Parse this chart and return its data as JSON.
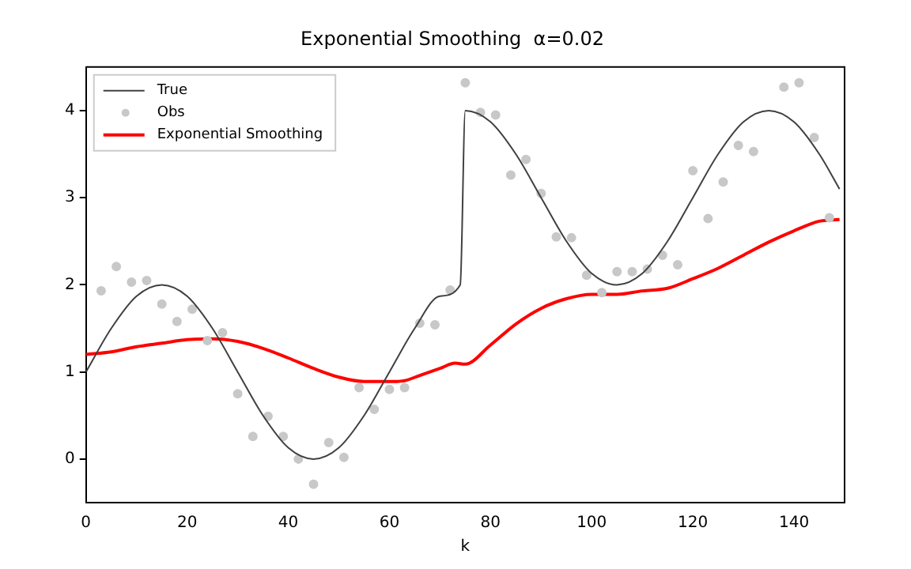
{
  "chart_data": {
    "type": "line",
    "title": "Exponential Smoothing  α=0.02",
    "xlabel": "k",
    "xlim": [
      0,
      150
    ],
    "xticks": [
      0,
      20,
      40,
      60,
      80,
      100,
      120,
      140
    ],
    "ylim": [
      -0.5,
      4.5
    ],
    "yticks": [
      0,
      1,
      2,
      3,
      4
    ],
    "grid": false,
    "legend": "top left",
    "series": [
      {
        "name": "True",
        "type": "line",
        "color": "#404040",
        "marker": "none",
        "x": [
          0,
          5,
          10,
          15,
          20,
          25,
          30,
          35,
          40,
          45,
          50,
          55,
          60,
          65,
          70,
          74,
          75,
          80,
          85,
          90,
          95,
          100,
          105,
          110,
          115,
          120,
          125,
          130,
          135,
          140,
          145,
          149
        ],
        "values": [
          1,
          1.5,
          1.87,
          2,
          1.87,
          1.5,
          1,
          0.5,
          0.13,
          0,
          0.13,
          0.5,
          1,
          1.5,
          1.87,
          2,
          4,
          3.87,
          3.5,
          3,
          2.5,
          2.13,
          2,
          2.13,
          2.5,
          3,
          3.5,
          3.87,
          4,
          3.87,
          3.5,
          3.1
        ]
      },
      {
        "name": "Obs",
        "type": "scatter",
        "color": "#c8c8c8",
        "marker": "circle",
        "x": [
          3,
          6,
          9,
          12,
          15,
          18,
          21,
          24,
          27,
          30,
          33,
          36,
          39,
          42,
          45,
          48,
          51,
          54,
          57,
          60,
          63,
          66,
          69,
          72,
          75,
          78,
          81,
          84,
          87,
          90,
          93,
          96,
          99,
          102,
          105,
          108,
          111,
          114,
          117,
          120,
          123,
          126,
          129,
          132,
          138,
          141,
          144,
          147
        ],
        "values": [
          1.93,
          2.21,
          2.03,
          2.05,
          1.78,
          1.58,
          1.72,
          1.36,
          1.45,
          0.75,
          0.26,
          0.49,
          0.26,
          0,
          -0.29,
          0.19,
          0.02,
          0.82,
          0.57,
          0.8,
          0.82,
          1.56,
          1.54,
          1.94,
          4.32,
          3.98,
          3.95,
          3.26,
          3.44,
          3.05,
          2.55,
          2.54,
          2.11,
          1.91,
          2.15,
          2.15,
          2.18,
          2.34,
          2.23,
          3.31,
          2.76,
          3.18,
          3.6,
          3.53,
          4.27,
          4.32,
          3.69,
          2.77
        ]
      },
      {
        "name": "Exponential Smoothing",
        "type": "line",
        "color": "#ff0000",
        "marker": "none",
        "x": [
          0,
          5,
          10,
          15,
          20,
          25,
          30,
          35,
          40,
          45,
          50,
          55,
          60,
          63,
          66,
          70,
          73,
          75,
          80,
          85,
          90,
          95,
          100,
          105,
          110,
          115,
          120,
          125,
          130,
          135,
          140,
          145,
          149
        ],
        "values": [
          1.2,
          1.23,
          1.29,
          1.33,
          1.37,
          1.38,
          1.35,
          1.27,
          1.16,
          1.04,
          0.94,
          0.89,
          0.89,
          0.9,
          0.96,
          1.04,
          1.1,
          1.09,
          1.31,
          1.55,
          1.73,
          1.84,
          1.89,
          1.89,
          1.93,
          1.96,
          2.07,
          2.19,
          2.34,
          2.49,
          2.62,
          2.73,
          2.75
        ]
      }
    ]
  }
}
